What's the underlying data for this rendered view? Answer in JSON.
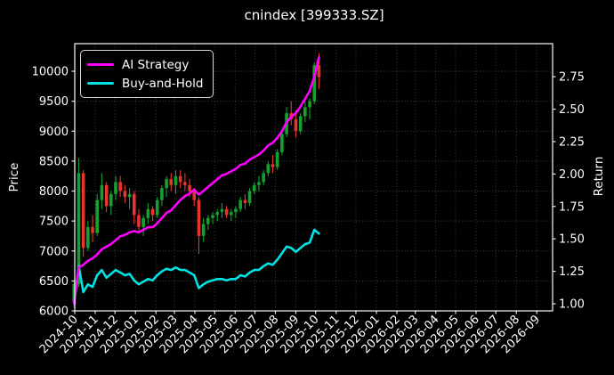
{
  "title": "cnindex [399333.SZ]",
  "legend": {
    "items": [
      {
        "label": "AI Strategy",
        "color": "#ff00ff"
      },
      {
        "label": "Buy-and-Hold",
        "color": "#00e4e4"
      }
    ]
  },
  "axes": {
    "left_label": "Price",
    "right_label": "Return",
    "left_ticks": [
      "6000",
      "6500",
      "7000",
      "7500",
      "8000",
      "8500",
      "9000",
      "9500",
      "10000"
    ],
    "right_ticks": [
      "1.00",
      "1.25",
      "1.50",
      "1.75",
      "2.00",
      "2.25",
      "2.50",
      "2.75"
    ],
    "x_ticks": [
      "2024-10",
      "2024-11",
      "2024-12",
      "2025-01",
      "2025-02",
      "2025-03",
      "2025-04",
      "2025-05",
      "2025-06",
      "2025-07",
      "2025-08",
      "2025-09",
      "2025-10",
      "2025-11",
      "2025-12",
      "2026-01",
      "2026-02",
      "2026-03",
      "2026-04",
      "2026-05",
      "2026-06",
      "2026-07",
      "2026-08",
      "2026-09"
    ]
  },
  "chart_data": {
    "type": "candlestick+line",
    "title": "cnindex [399333.SZ]",
    "xlabel": "",
    "left_axis": {
      "label": "Price",
      "ticks": [
        6000,
        6500,
        7000,
        7500,
        8000,
        8500,
        9000,
        9500,
        10000
      ],
      "range": [
        6000,
        10460
      ]
    },
    "right_axis": {
      "label": "Return",
      "ticks": [
        1.0,
        1.25,
        1.5,
        1.75,
        2.0,
        2.25,
        2.5,
        2.75
      ],
      "range": [
        0.945,
        3.0
      ]
    },
    "x_axis": {
      "start": "2024-10-01",
      "end": "2026-09-25",
      "tick_unit": "month",
      "grid": true,
      "data_end": "2025-10-06"
    },
    "legend_position": "upper-left",
    "colors": {
      "background": "#000000",
      "text": "#ffffff",
      "grid": "#7d7d7d",
      "spine": "#e8e8e8",
      "up": "#14a12f",
      "down": "#e8352c",
      "ai": "#ff00ff",
      "bh": "#00e4e4"
    },
    "candles": {
      "axis": "left",
      "dates": [
        "2024-09-30",
        "2024-10-07",
        "2024-10-14",
        "2024-10-21",
        "2024-10-28",
        "2024-11-04",
        "2024-11-11",
        "2024-11-18",
        "2024-11-25",
        "2024-12-02",
        "2024-12-09",
        "2024-12-16",
        "2024-12-23",
        "2024-12-30",
        "2025-01-06",
        "2025-01-13",
        "2025-01-20",
        "2025-01-27",
        "2025-02-03",
        "2025-02-10",
        "2025-02-17",
        "2025-02-24",
        "2025-03-03",
        "2025-03-10",
        "2025-03-17",
        "2025-03-24",
        "2025-03-31",
        "2025-04-07",
        "2025-04-14",
        "2025-04-21",
        "2025-04-28",
        "2025-05-05",
        "2025-05-12",
        "2025-05-19",
        "2025-05-26",
        "2025-06-02",
        "2025-06-09",
        "2025-06-16",
        "2025-06-23",
        "2025-06-30",
        "2025-07-07",
        "2025-07-14",
        "2025-07-21",
        "2025-07-28",
        "2025-08-04",
        "2025-08-11",
        "2025-08-18",
        "2025-08-25",
        "2025-09-01",
        "2025-09-08",
        "2025-09-15",
        "2025-09-22",
        "2025-09-29",
        "2025-10-06"
      ],
      "open": [
        6150,
        6450,
        8300,
        7050,
        7400,
        7300,
        7850,
        8100,
        7750,
        7950,
        8150,
        8000,
        7900,
        7950,
        7600,
        7400,
        7550,
        7700,
        7600,
        7850,
        8050,
        8200,
        8100,
        8250,
        8150,
        8100,
        8000,
        7850,
        7250,
        7450,
        7550,
        7600,
        7650,
        7700,
        7600,
        7650,
        7700,
        7850,
        7800,
        8000,
        8100,
        8150,
        8300,
        8450,
        8400,
        8650,
        8950,
        9300,
        9200,
        9000,
        9250,
        9400,
        9500,
        10100
      ],
      "high": [
        6500,
        8550,
        8350,
        7500,
        7600,
        7950,
        8300,
        8150,
        8000,
        8250,
        8250,
        8100,
        8050,
        8000,
        7700,
        7600,
        7800,
        7750,
        7900,
        8100,
        8250,
        8300,
        8350,
        8350,
        8300,
        8200,
        8050,
        7900,
        7550,
        7600,
        7650,
        7700,
        7800,
        7750,
        7700,
        7750,
        7900,
        7950,
        8050,
        8150,
        8250,
        8350,
        8500,
        8600,
        8700,
        9000,
        9400,
        9500,
        9350,
        9300,
        9500,
        9550,
        10150,
        10300
      ],
      "low": [
        6050,
        6400,
        6900,
        7000,
        7150,
        7250,
        7700,
        7650,
        7600,
        7850,
        7900,
        7800,
        7700,
        7450,
        7300,
        7250,
        7450,
        7500,
        7550,
        7750,
        7900,
        8000,
        7950,
        8050,
        8000,
        7900,
        7750,
        6950,
        7150,
        7350,
        7450,
        7500,
        7550,
        7550,
        7500,
        7550,
        7650,
        7700,
        7750,
        7950,
        8000,
        8100,
        8250,
        8300,
        8350,
        8600,
        8900,
        9100,
        8900,
        8950,
        9150,
        9200,
        9450,
        9700
      ],
      "close": [
        6450,
        8300,
        7050,
        7400,
        7300,
        7850,
        8100,
        7750,
        7950,
        8150,
        8000,
        7900,
        7950,
        7600,
        7400,
        7550,
        7700,
        7600,
        7850,
        8050,
        8200,
        8100,
        8250,
        8150,
        8100,
        8000,
        7850,
        7250,
        7450,
        7550,
        7600,
        7650,
        7700,
        7600,
        7650,
        7700,
        7850,
        7800,
        8000,
        8100,
        8150,
        8300,
        8450,
        8400,
        8650,
        8950,
        9300,
        9200,
        9000,
        9250,
        9400,
        9500,
        10100,
        9900
      ]
    },
    "series": [
      {
        "name": "AI Strategy",
        "axis": "right",
        "color": "#ff00ff",
        "values": [
          1.0,
          1.28,
          1.3,
          1.33,
          1.35,
          1.38,
          1.42,
          1.44,
          1.46,
          1.49,
          1.52,
          1.53,
          1.55,
          1.56,
          1.55,
          1.57,
          1.59,
          1.59,
          1.62,
          1.66,
          1.7,
          1.72,
          1.76,
          1.8,
          1.83,
          1.85,
          1.88,
          1.84,
          1.87,
          1.9,
          1.93,
          1.96,
          1.99,
          2.0,
          2.02,
          2.04,
          2.07,
          2.08,
          2.11,
          2.13,
          2.15,
          2.18,
          2.22,
          2.24,
          2.28,
          2.33,
          2.4,
          2.44,
          2.47,
          2.52,
          2.58,
          2.64,
          2.75,
          2.9
        ]
      },
      {
        "name": "Buy-and-Hold",
        "axis": "right",
        "color": "#00e4e4",
        "values": [
          1.0,
          1.29,
          1.09,
          1.15,
          1.13,
          1.22,
          1.26,
          1.2,
          1.23,
          1.26,
          1.24,
          1.22,
          1.23,
          1.18,
          1.15,
          1.17,
          1.19,
          1.18,
          1.22,
          1.25,
          1.27,
          1.26,
          1.28,
          1.26,
          1.26,
          1.24,
          1.22,
          1.12,
          1.15,
          1.17,
          1.18,
          1.19,
          1.19,
          1.18,
          1.19,
          1.19,
          1.22,
          1.21,
          1.24,
          1.26,
          1.26,
          1.29,
          1.31,
          1.3,
          1.34,
          1.39,
          1.44,
          1.43,
          1.4,
          1.43,
          1.46,
          1.47,
          1.57,
          1.54
        ]
      }
    ]
  }
}
